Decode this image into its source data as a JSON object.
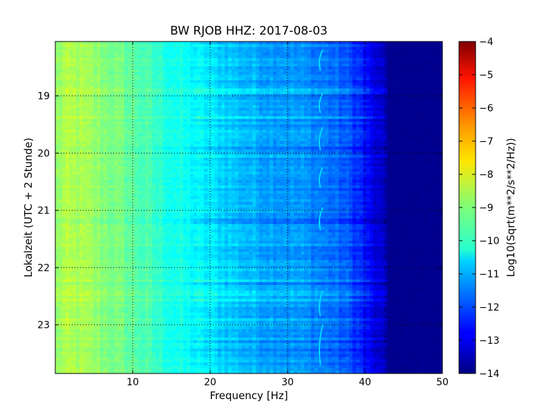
{
  "chart_data": {
    "type": "heatmap",
    "title": "BW RJOB HHZ: 2017-08-03",
    "xlabel": "Frequency [Hz]",
    "ylabel": "Lokalzeit (UTC + 2 Stunde)",
    "xlim": [
      0,
      50
    ],
    "ylim": [
      18.05,
      23.85
    ],
    "x_ticks": [
      10,
      20,
      30,
      40,
      50
    ],
    "x_tick_labels": [
      "10",
      "20",
      "30",
      "40",
      "50"
    ],
    "y_ticks": [
      19,
      20,
      21,
      22,
      23
    ],
    "y_tick_labels": [
      "19",
      "20",
      "21",
      "22",
      "23"
    ],
    "y_inverted": true,
    "grid": true,
    "grid_style": "dotted",
    "colormap": "jet",
    "colorbar": {
      "label": "Log10(Sqrt(m**2/s**2/Hz))",
      "range": [
        -14,
        -4
      ],
      "ticks": [
        -4,
        -5,
        -6,
        -7,
        -8,
        -9,
        -10,
        -11,
        -12,
        -13,
        -14
      ],
      "tick_labels": [
        "−4",
        "−5",
        "−6",
        "−7",
        "−8",
        "−9",
        "−10",
        "−11",
        "−12",
        "−13",
        "−14"
      ]
    },
    "spectral_profile": {
      "frequency_hz": [
        0,
        1,
        3,
        6,
        9,
        12,
        15,
        18,
        21,
        24,
        27,
        30,
        33,
        36,
        38,
        39.5,
        41,
        42.5,
        45,
        50
      ],
      "log10_amplitude": [
        -8.9,
        -8.6,
        -8.6,
        -8.9,
        -9.2,
        -9.6,
        -10.0,
        -10.3,
        -10.6,
        -10.9,
        -11.1,
        -11.2,
        -11.4,
        -11.7,
        -12.0,
        -12.4,
        -13.0,
        -13.5,
        -13.8,
        -13.9
      ]
    },
    "narrowband_feature": {
      "frequency_hz": 34.2,
      "log10_amplitude": -10.6
    }
  }
}
